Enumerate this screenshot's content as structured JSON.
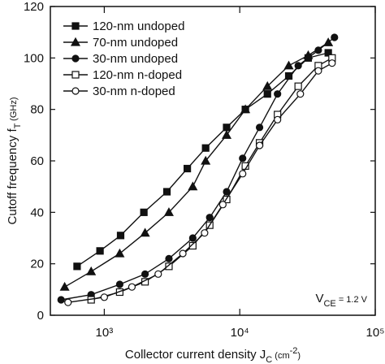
{
  "chart_data": {
    "type": "line",
    "x_label": [
      "Collector current density  J",
      "C",
      "  (cm",
      "-2",
      ")"
    ],
    "y_label": [
      "Cutoff frequency  f",
      "T",
      "  (GHz)"
    ],
    "annotation": [
      "V",
      "CE",
      " = 1.2 V"
    ],
    "log_x": true,
    "xlim": [
      400,
      100000
    ],
    "ylim": [
      0,
      120
    ],
    "xticks": [
      {
        "value": 1000,
        "label": "10³"
      },
      {
        "value": 10000,
        "label": "10⁴"
      },
      {
        "value": 100000,
        "label": "10⁵"
      }
    ],
    "yticks": [
      0,
      20,
      40,
      60,
      80,
      100,
      120
    ],
    "legend": "upper left",
    "series": [
      {
        "name": "120-nm undoped",
        "color": "#111111",
        "marker": "square",
        "filled": true,
        "x": [
          630,
          930,
          1320,
          1960,
          2900,
          4100,
          5600,
          8000,
          11000,
          16000,
          23000,
          32000,
          45000
        ],
        "values": [
          19,
          25,
          31,
          40,
          48,
          57,
          65,
          73,
          80,
          86,
          93,
          100,
          102
        ]
      },
      {
        "name": "70-nm undoped",
        "color": "#111111",
        "marker": "triangle",
        "filled": true,
        "x": [
          510,
          800,
          1300,
          2000,
          3000,
          4500,
          5600,
          8000,
          11000,
          16000,
          23000,
          32000,
          45000
        ],
        "values": [
          11,
          17,
          24,
          32,
          40,
          50,
          60,
          70,
          80,
          89,
          97,
          101,
          106
        ]
      },
      {
        "name": "30-nm undoped",
        "color": "#111111",
        "marker": "circle",
        "filled": true,
        "x": [
          480,
          800,
          1300,
          2000,
          3000,
          4500,
          6000,
          8000,
          10500,
          14000,
          19000,
          27000,
          38000,
          50000
        ],
        "values": [
          6,
          8,
          12,
          16,
          22,
          30,
          38,
          48,
          61,
          73,
          86,
          97,
          103,
          108
        ]
      },
      {
        "name": "120-nm n-doped",
        "color": "#111111",
        "marker": "square",
        "filled": false,
        "x": [
          800,
          1300,
          2000,
          3000,
          4500,
          6000,
          8000,
          11000,
          14000,
          19000,
          27000,
          38000,
          48000
        ],
        "values": [
          6,
          9,
          13,
          19,
          27,
          35,
          45,
          58,
          67,
          78,
          89,
          97,
          100
        ]
      },
      {
        "name": "30-nm n-doped",
        "color": "#111111",
        "marker": "circle",
        "filled": false,
        "x": [
          540,
          1000,
          1600,
          2500,
          3800,
          5500,
          7500,
          10500,
          14000,
          19000,
          28000,
          38000,
          48000
        ],
        "values": [
          5,
          7,
          11,
          16,
          24,
          32,
          43,
          55,
          66,
          76,
          86,
          95,
          98
        ]
      }
    ]
  }
}
